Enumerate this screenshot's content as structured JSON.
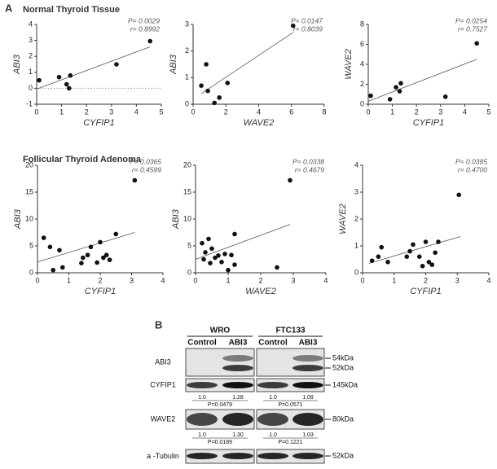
{
  "panel_a": {
    "label": "A",
    "sections": [
      "Normal Thyroid Tissue",
      "Follicular Thyroid Adenoma"
    ]
  },
  "chart_data": [
    {
      "type": "scatter",
      "x_label": "CYFIP1",
      "y_label": "ABI3",
      "p_value": "P= 0.0029",
      "r_value": "r= 0.8992",
      "x": [
        0.1,
        0.9,
        1.2,
        1.3,
        1.35,
        3.2,
        4.55
      ],
      "values": [
        0.5,
        0.7,
        0.25,
        0.0,
        0.8,
        1.5,
        2.95
      ],
      "trendline": {
        "x": [
          0,
          4.55
        ],
        "y": [
          -0.05,
          2.6
        ]
      },
      "reference_line": 0,
      "xlim": [
        0,
        5
      ],
      "xticks": [
        0,
        1,
        2,
        3,
        4,
        5
      ],
      "ylim": [
        -1,
        4
      ],
      "yticks": [
        -1,
        0,
        1,
        2,
        3,
        4
      ],
      "color": "#111111"
    },
    {
      "type": "scatter",
      "x_label": "WAVE2",
      "y_label": "ABI3",
      "p_value": "P= 0.0147",
      "r_value": "r= 0.8039",
      "x": [
        0.5,
        0.8,
        0.9,
        1.3,
        1.6,
        2.1,
        6.1
      ],
      "values": [
        0.7,
        1.5,
        0.5,
        0.05,
        0.25,
        0.8,
        2.95
      ],
      "trendline": {
        "x": [
          0.5,
          6.1
        ],
        "y": [
          0.4,
          2.7
        ]
      },
      "xlim": [
        0,
        8
      ],
      "xticks": [
        0,
        2,
        4,
        6,
        8
      ],
      "ylim": [
        0,
        3
      ],
      "yticks": [
        0,
        1,
        2,
        3
      ],
      "color": "#111111"
    },
    {
      "type": "scatter",
      "x_label": "CYFIP1",
      "y_label": "WAVE2",
      "p_value": "P= 0.0254",
      "r_value": "r= 0.7527",
      "x": [
        0.1,
        0.9,
        1.15,
        1.3,
        1.35,
        3.2,
        4.5
      ],
      "values": [
        0.85,
        0.5,
        1.7,
        1.3,
        2.1,
        0.75,
        6.1
      ],
      "trendline": {
        "x": [
          0,
          4.5
        ],
        "y": [
          0.3,
          4.5
        ]
      },
      "xlim": [
        0,
        5
      ],
      "xticks": [
        0,
        1,
        2,
        3,
        4,
        5
      ],
      "ylim": [
        0,
        8
      ],
      "yticks": [
        0,
        2,
        4,
        6,
        8
      ],
      "color": "#111111"
    },
    {
      "type": "scatter",
      "x_label": "CYFIP1",
      "y_label": "ABI3",
      "p_value": "P= 0.0365",
      "r_value": "r= 0.4599",
      "x": [
        0.2,
        0.4,
        0.5,
        0.7,
        0.8,
        1.4,
        1.45,
        1.6,
        1.7,
        1.9,
        2.0,
        2.1,
        2.2,
        2.3,
        2.5,
        3.1
      ],
      "values": [
        6.5,
        4.8,
        0.5,
        4.2,
        1.0,
        1.8,
        2.8,
        3.3,
        4.8,
        1.9,
        5.7,
        2.8,
        3.3,
        2.4,
        7.2,
        17.2
      ],
      "trendline": {
        "x": [
          0,
          3.1
        ],
        "y": [
          2,
          7.5
        ]
      },
      "xlim": [
        0,
        4
      ],
      "xticks": [
        0,
        1,
        2,
        3,
        4
      ],
      "ylim": [
        0,
        20
      ],
      "yticks": [
        0,
        5,
        10,
        15,
        20
      ],
      "color": "#111111"
    },
    {
      "type": "scatter",
      "x_label": "WAVE2",
      "y_label": "ABI3",
      "p_value": "P= 0.0338",
      "r_value": "r= 0.4679",
      "x": [
        0.2,
        0.25,
        0.3,
        0.4,
        0.45,
        0.5,
        0.6,
        0.7,
        0.8,
        0.9,
        1.0,
        1.1,
        1.2,
        1.2,
        2.5,
        2.9
      ],
      "values": [
        5.5,
        2.5,
        3.8,
        6.3,
        1.8,
        4.5,
        2.8,
        3.2,
        2.0,
        3.5,
        0.5,
        3.3,
        1.5,
        7.2,
        1.0,
        17.2
      ],
      "trendline": {
        "x": [
          0,
          2.9
        ],
        "y": [
          2.5,
          9
        ]
      },
      "xlim": [
        0,
        4
      ],
      "xticks": [
        0,
        1,
        2,
        3,
        4
      ],
      "ylim": [
        0,
        20
      ],
      "yticks": [
        0,
        5,
        10,
        15,
        20
      ],
      "color": "#111111"
    },
    {
      "type": "scatter",
      "x_label": "CYFIP1",
      "y_label": "WAVE2",
      "p_value": "P= 0.0385",
      "r_value": "r= 0.4700",
      "x": [
        0.3,
        0.5,
        0.6,
        0.8,
        1.4,
        1.5,
        1.6,
        1.8,
        1.9,
        2.0,
        2.1,
        2.2,
        2.3,
        2.4,
        3.05
      ],
      "values": [
        0.45,
        0.6,
        0.95,
        0.4,
        0.6,
        0.8,
        1.05,
        0.6,
        0.25,
        1.15,
        0.4,
        0.3,
        0.75,
        1.15,
        2.9
      ],
      "trendline": {
        "x": [
          0.2,
          3.1
        ],
        "y": [
          0.35,
          1.35
        ]
      },
      "xlim": [
        0,
        4
      ],
      "xticks": [
        0,
        1,
        2,
        3,
        4
      ],
      "ylim": [
        0,
        4
      ],
      "yticks": [
        0,
        1,
        2,
        3,
        4
      ],
      "color": "#111111"
    }
  ],
  "blot": {
    "label": "B",
    "groups": [
      {
        "name": "WRO",
        "columns": [
          "Control",
          "ABI3"
        ]
      },
      {
        "name": "FTC133",
        "columns": [
          "Control",
          "ABI3"
        ]
      }
    ],
    "rows": [
      {
        "name": "ABI3",
        "markers": [
          "54kDa",
          "52kDa"
        ]
      },
      {
        "name": "CYFIP1",
        "markers": [
          "145kDa"
        ],
        "quant": [
          {
            "values": [
              "1.0",
              "1.28"
            ],
            "p": "P=0.0479"
          },
          {
            "values": [
              "1.0",
              "1.09"
            ],
            "p": "P=0.0571"
          }
        ]
      },
      {
        "name": "WAVE2",
        "markers": [
          "80kDa"
        ],
        "quant": [
          {
            "values": [
              "1.0",
              "1.30"
            ],
            "p": "P=0.0189"
          },
          {
            "values": [
              "1.0",
              "1.03"
            ],
            "p": "P=0.1221"
          }
        ]
      },
      {
        "name": "a -Tubulin",
        "markers": [
          "52kDa"
        ]
      }
    ]
  }
}
